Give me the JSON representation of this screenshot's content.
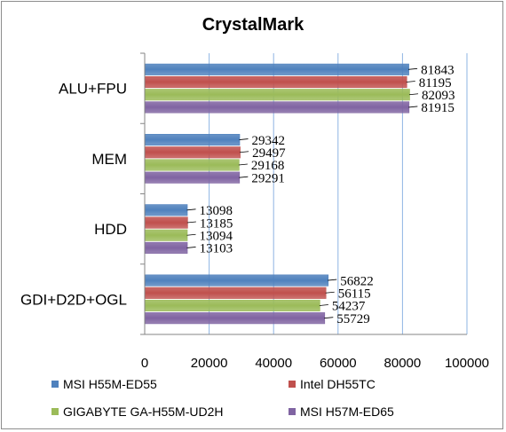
{
  "chart_data": {
    "type": "bar",
    "orientation": "horizontal",
    "title": "CrystalMark",
    "categories": [
      "ALU+FPU",
      "MEM",
      "HDD",
      "GDI+D2D+OGL"
    ],
    "series": [
      {
        "name": "MSI H55M-ED55",
        "color": "#4f81bd",
        "values": [
          81843,
          29342,
          13098,
          56822
        ]
      },
      {
        "name": "Intel DH55TC",
        "color": "#c0504d",
        "values": [
          81195,
          29497,
          13185,
          56115
        ]
      },
      {
        "name": "GIGABYTE GA-H55M-UD2H",
        "color": "#9bbb59",
        "values": [
          82093,
          29168,
          13094,
          54237
        ]
      },
      {
        "name": "MSI H57M-ED65",
        "color": "#8064a2",
        "values": [
          81915,
          29291,
          13103,
          55729
        ]
      }
    ],
    "xlim": [
      0,
      100000
    ],
    "x_ticks": [
      0,
      20000,
      40000,
      60000,
      80000,
      100000
    ],
    "grid": "vertical",
    "legend_position": "bottom",
    "legend_columns": 2
  }
}
